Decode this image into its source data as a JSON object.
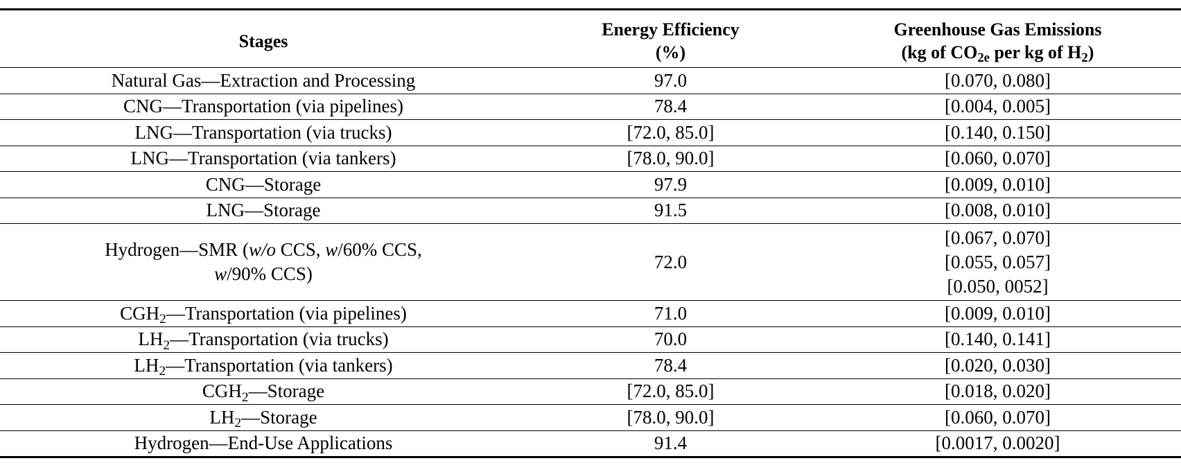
{
  "table": {
    "headers": {
      "stages": "Stages",
      "efficiency_line1": "Energy Efficiency",
      "efficiency_line2": "(%)",
      "emissions_line1": "Greenhouse Gas Emissions",
      "emissions_line2_pre": "(kg of CO",
      "emissions_line2_sub1": "2e",
      "emissions_line2_mid": " per kg of H",
      "emissions_line2_sub2": "2",
      "emissions_line2_post": ")"
    },
    "rows": [
      {
        "stage": "Natural Gas—Extraction and Processing",
        "efficiency": "97.0",
        "emissions": "[0.070, 0.080]"
      },
      {
        "stage": "CNG—Transportation (via pipelines)",
        "efficiency": "78.4",
        "emissions": "[0.004, 0.005]"
      },
      {
        "stage": "LNG—Transportation (via trucks)",
        "efficiency": "[72.0, 85.0]",
        "emissions": "[0.140, 0.150]"
      },
      {
        "stage": "LNG—Transportation (via tankers)",
        "efficiency": "[78.0, 90.0]",
        "emissions": "[0.060, 0.070]"
      },
      {
        "stage": "CNG—Storage",
        "efficiency": "97.9",
        "emissions": "[0.009, 0.010]"
      },
      {
        "stage": "LNG—Storage",
        "efficiency": "91.5",
        "emissions": "[0.008, 0.010]"
      }
    ],
    "smr_row": {
      "stage_pre": "Hydrogen—SMR (",
      "stage_wo": "w/o",
      "stage_mid1": " CCS, ",
      "stage_w1": "w",
      "stage_mid2": "/60% CCS,",
      "stage_w2": "w",
      "stage_post": "/90% CCS)",
      "efficiency": "72.0",
      "emissions": [
        "[0.067, 0.070]",
        "[0.055, 0.057]",
        "[0.050, 0052]"
      ]
    },
    "h2_rows": [
      {
        "stage_pre": "CGH",
        "stage_sub": "2",
        "stage_post": "—Transportation (via pipelines)",
        "efficiency": "71.0",
        "emissions": "[0.009, 0.010]"
      },
      {
        "stage_pre": "LH",
        "stage_sub": "2",
        "stage_post": "—Transportation (via trucks)",
        "efficiency": "70.0",
        "emissions": "[0.140, 0.141]"
      },
      {
        "stage_pre": "LH",
        "stage_sub": "2",
        "stage_post": "—Transportation (via tankers)",
        "efficiency": "78.4",
        "emissions": "[0.020, 0.030]"
      },
      {
        "stage_pre": "CGH",
        "stage_sub": "2",
        "stage_post": "—Storage",
        "efficiency": "[72.0, 85.0]",
        "emissions": "[0.018, 0.020]"
      },
      {
        "stage_pre": "LH",
        "stage_sub": "2",
        "stage_post": "—Storage",
        "efficiency": "[78.0, 90.0]",
        "emissions": "[0.060, 0.070]"
      }
    ],
    "last_row": {
      "stage": "Hydrogen—End-Use Applications",
      "efficiency": "91.4",
      "emissions": "[0.0017, 0.0020]"
    }
  }
}
